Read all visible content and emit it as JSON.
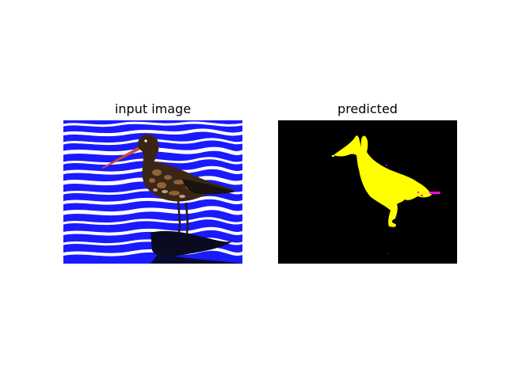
{
  "figure": {
    "panels": [
      {
        "title": "input image",
        "content": "photo of a black-tailed godwit standing in blue rippled water"
      },
      {
        "title": "predicted",
        "content": "segmentation mask: yellow bird silhouette on black background with small magenta region near tail"
      }
    ],
    "colors": {
      "background": "#ffffff",
      "water_blue": "#1a1aff",
      "water_white": "#ffffff",
      "mask_background": "#000000",
      "mask_bird": "#ffff00",
      "mask_accent": "#ff00ff"
    }
  }
}
